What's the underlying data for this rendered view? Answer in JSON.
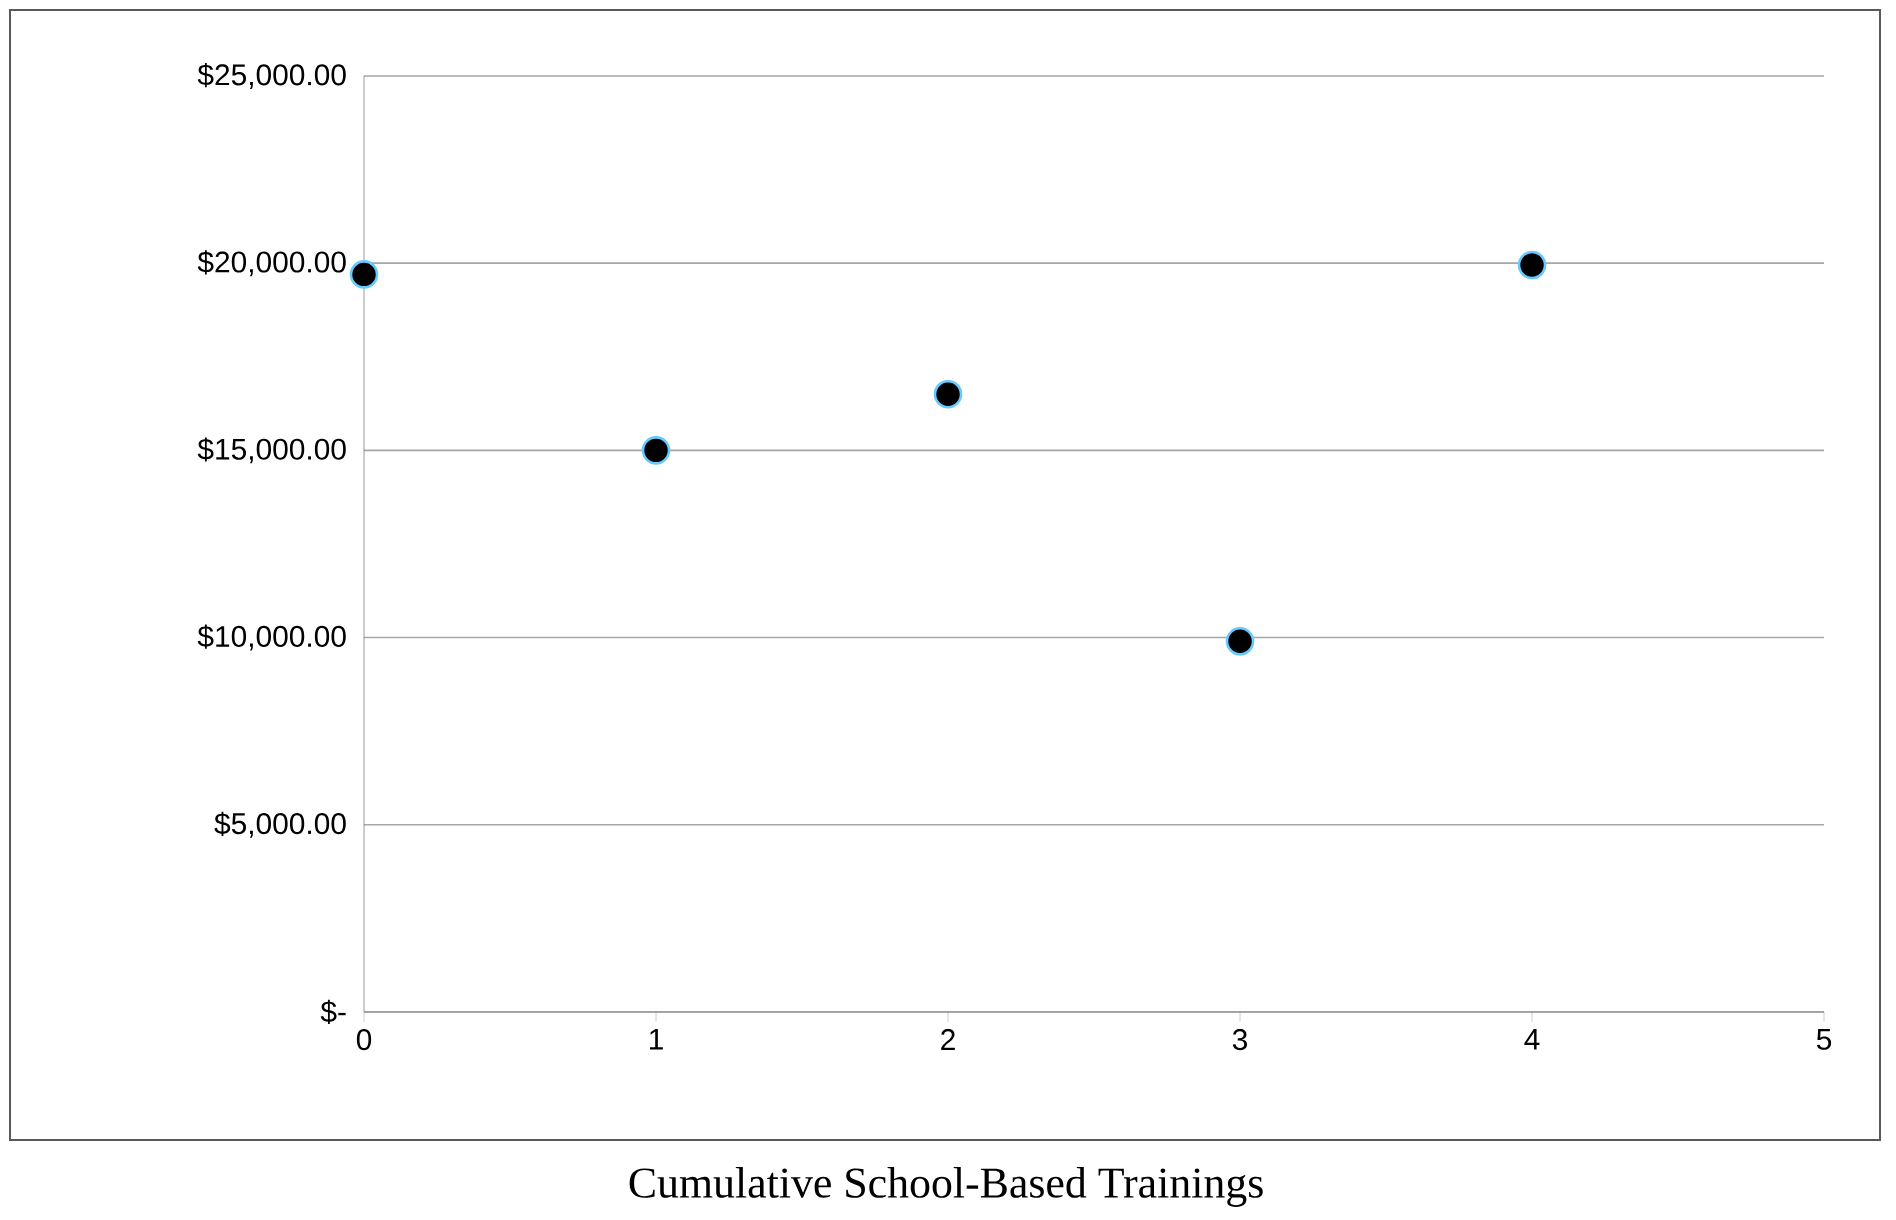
{
  "chart_data": {
    "type": "scatter",
    "xlabel": "Cumulative School-Based Trainings",
    "x": [
      0,
      1,
      2,
      3,
      4
    ],
    "series": [
      {
        "color": "#000000",
        "values": [
          19700,
          15000,
          16500,
          9900,
          19950
        ]
      }
    ],
    "xlim": [
      0,
      5
    ],
    "xticks": [
      0,
      1,
      2,
      3,
      4,
      5
    ],
    "ylim": [
      0,
      25000
    ],
    "yticks": [
      {
        "value": 0,
        "label": "$-"
      },
      {
        "value": 5000,
        "label": "$5,000.00"
      },
      {
        "value": 10000,
        "label": "$10,000.00"
      },
      {
        "value": 15000,
        "label": "$15,000.00"
      },
      {
        "value": 20000,
        "label": "$20,000.00"
      },
      {
        "value": 25000,
        "label": "$25,000.00"
      }
    ],
    "grid": "y",
    "marker": "circle"
  }
}
